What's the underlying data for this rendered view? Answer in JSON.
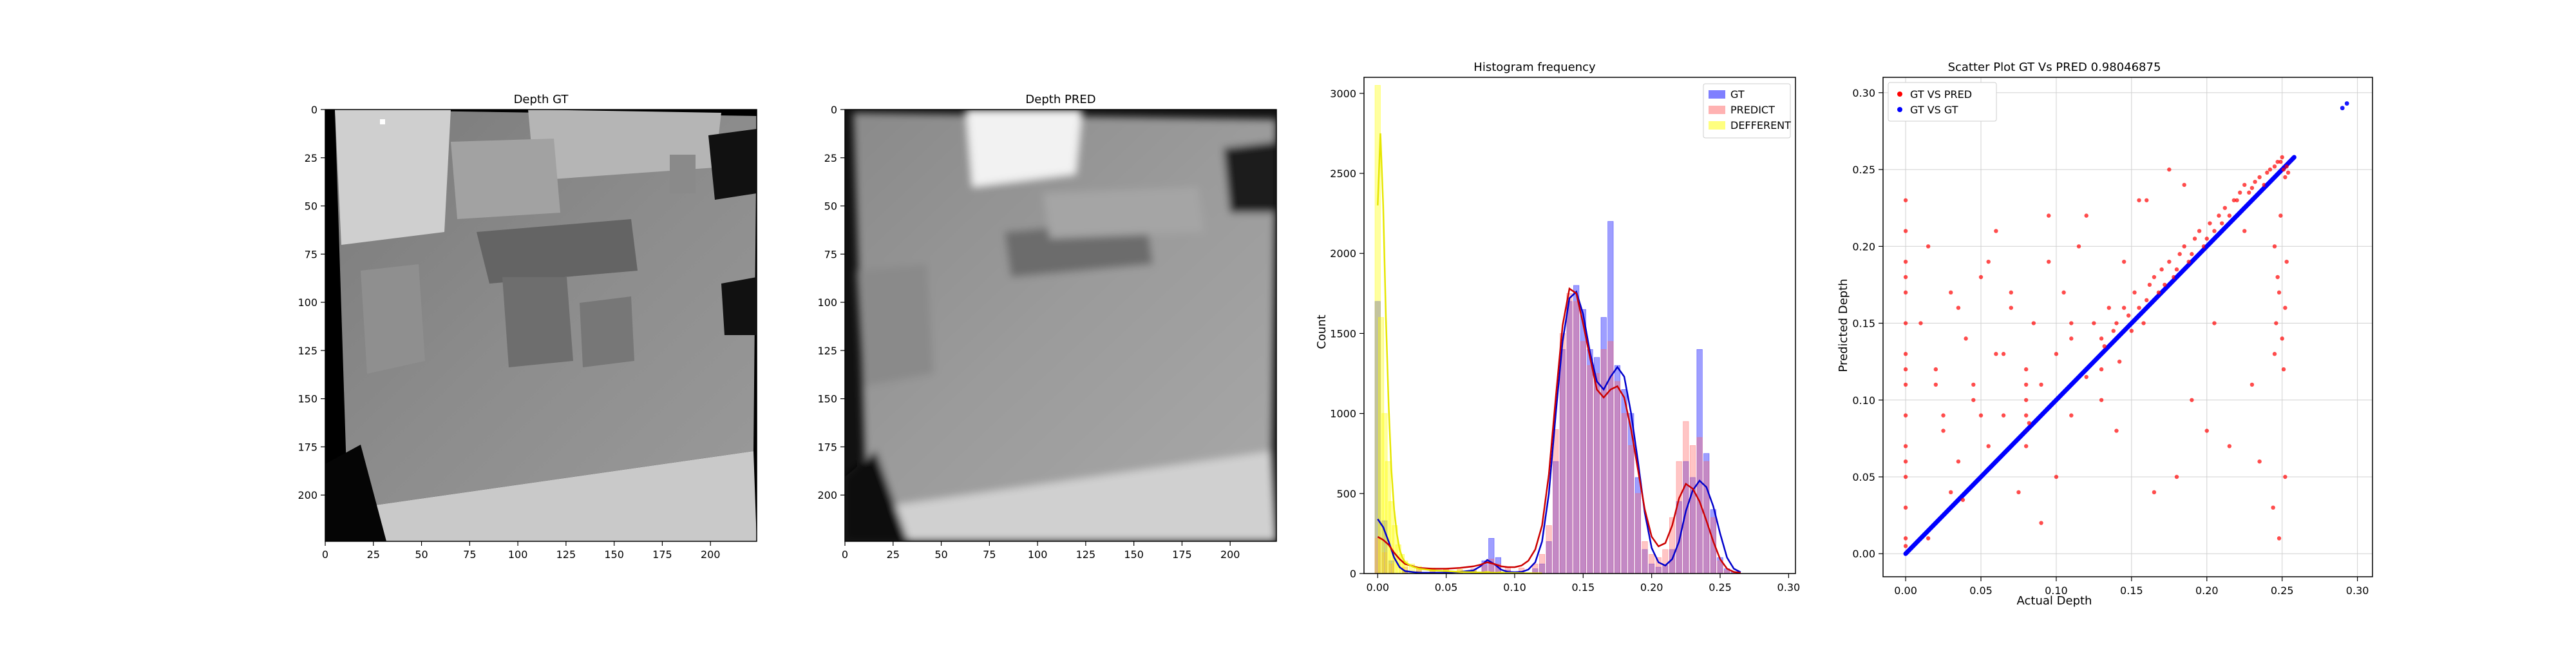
{
  "chart_data": [
    {
      "type": "heatmap",
      "title": "Depth GT",
      "xlim": [
        0,
        224
      ],
      "ylim": [
        224,
        0
      ],
      "x_ticks": [
        0,
        25,
        50,
        75,
        100,
        125,
        150,
        175,
        200
      ],
      "y_ticks": [
        0,
        25,
        50,
        75,
        100,
        125,
        150,
        175,
        200
      ],
      "colormap": "gray"
    },
    {
      "type": "heatmap",
      "title": "Depth PRED",
      "xlim": [
        0,
        224
      ],
      "ylim": [
        224,
        0
      ],
      "x_ticks": [
        0,
        25,
        50,
        75,
        100,
        125,
        150,
        175,
        200
      ],
      "y_ticks": [
        0,
        25,
        50,
        75,
        100,
        125,
        150,
        175,
        200
      ],
      "colormap": "gray"
    },
    {
      "type": "bar",
      "title": "Histogram frequency",
      "xlabel": "",
      "ylabel": "Count",
      "xlim": [
        -0.01,
        0.305
      ],
      "ylim": [
        0,
        3100
      ],
      "x_ticks": [
        0.0,
        0.05,
        0.1,
        0.15,
        0.2,
        0.25,
        0.3
      ],
      "y_ticks": [
        0,
        500,
        1000,
        1500,
        2000,
        2500,
        3000
      ],
      "legend_position": "top-right",
      "bin_width": 0.0025,
      "series": [
        {
          "name": "GT",
          "color": "#0000ff",
          "x": [
            0.0,
            0.005,
            0.01,
            0.02,
            0.03,
            0.04,
            0.05,
            0.06,
            0.07,
            0.078,
            0.083,
            0.088,
            0.095,
            0.105,
            0.115,
            0.12,
            0.125,
            0.13,
            0.135,
            0.14,
            0.145,
            0.15,
            0.155,
            0.16,
            0.165,
            0.17,
            0.175,
            0.18,
            0.185,
            0.19,
            0.195,
            0.2,
            0.205,
            0.21,
            0.215,
            0.22,
            0.225,
            0.23,
            0.235,
            0.24,
            0.245,
            0.25,
            0.255,
            0.26
          ],
          "values": [
            1700,
            330,
            80,
            20,
            15,
            10,
            10,
            10,
            15,
            80,
            220,
            100,
            20,
            15,
            30,
            60,
            200,
            700,
            1400,
            1700,
            1800,
            1650,
            1400,
            1350,
            1600,
            2200,
            1300,
            1150,
            1000,
            600,
            150,
            60,
            40,
            50,
            150,
            450,
            700,
            600,
            1400,
            750,
            400,
            100,
            30,
            10
          ]
        },
        {
          "name": "PREDICT",
          "color": "#ff6666",
          "x": [
            0.0,
            0.005,
            0.01,
            0.02,
            0.03,
            0.04,
            0.05,
            0.06,
            0.07,
            0.078,
            0.083,
            0.088,
            0.095,
            0.105,
            0.115,
            0.12,
            0.125,
            0.13,
            0.135,
            0.14,
            0.145,
            0.15,
            0.155,
            0.16,
            0.165,
            0.17,
            0.175,
            0.18,
            0.185,
            0.19,
            0.195,
            0.2,
            0.205,
            0.21,
            0.215,
            0.22,
            0.225,
            0.23,
            0.235,
            0.24,
            0.245,
            0.25,
            0.255,
            0.26
          ],
          "values": [
            220,
            130,
            60,
            40,
            30,
            30,
            25,
            25,
            30,
            50,
            90,
            60,
            40,
            35,
            60,
            120,
            300,
            900,
            1500,
            1750,
            1700,
            1450,
            1300,
            1250,
            1400,
            1450,
            1200,
            1000,
            800,
            500,
            200,
            120,
            100,
            150,
            350,
            700,
            950,
            800,
            850,
            700,
            350,
            80,
            20,
            5
          ]
        },
        {
          "name": "DEFFERENT",
          "color": "#ffff00",
          "x": [
            0.0,
            0.0025,
            0.005,
            0.0075,
            0.01,
            0.0125,
            0.015,
            0.0175,
            0.02,
            0.025,
            0.03,
            0.04,
            0.05,
            0.06,
            0.07,
            0.08,
            0.09,
            0.1,
            0.11
          ],
          "values": [
            3050,
            1600,
            1000,
            700,
            450,
            300,
            180,
            120,
            80,
            60,
            45,
            35,
            30,
            25,
            20,
            15,
            12,
            10,
            5
          ]
        }
      ],
      "kde": [
        {
          "series": "GT",
          "color": "#0000cc",
          "x": [
            0.0,
            0.004,
            0.008,
            0.012,
            0.016,
            0.02,
            0.03,
            0.04,
            0.05,
            0.06,
            0.07,
            0.075,
            0.08,
            0.085,
            0.09,
            0.095,
            0.1,
            0.105,
            0.11,
            0.115,
            0.12,
            0.125,
            0.13,
            0.135,
            0.14,
            0.145,
            0.15,
            0.155,
            0.16,
            0.165,
            0.17,
            0.175,
            0.18,
            0.185,
            0.19,
            0.195,
            0.2,
            0.205,
            0.21,
            0.215,
            0.22,
            0.225,
            0.23,
            0.235,
            0.24,
            0.245,
            0.25,
            0.255,
            0.26,
            0.265
          ],
          "values": [
            340,
            290,
            200,
            100,
            40,
            15,
            5,
            5,
            5,
            10,
            20,
            45,
            85,
            60,
            25,
            10,
            8,
            10,
            25,
            70,
            200,
            500,
            1000,
            1450,
            1720,
            1760,
            1620,
            1380,
            1200,
            1150,
            1230,
            1290,
            1230,
            1000,
            700,
            380,
            160,
            70,
            50,
            90,
            200,
            390,
            520,
            580,
            540,
            420,
            250,
            100,
            30,
            8
          ]
        },
        {
          "series": "PREDICT",
          "color": "#cc0000",
          "x": [
            0.0,
            0.004,
            0.008,
            0.012,
            0.016,
            0.02,
            0.03,
            0.04,
            0.05,
            0.06,
            0.07,
            0.075,
            0.08,
            0.085,
            0.09,
            0.095,
            0.1,
            0.105,
            0.11,
            0.115,
            0.12,
            0.125,
            0.13,
            0.135,
            0.14,
            0.145,
            0.15,
            0.155,
            0.16,
            0.165,
            0.17,
            0.175,
            0.18,
            0.185,
            0.19,
            0.195,
            0.2,
            0.205,
            0.21,
            0.215,
            0.22,
            0.225,
            0.23,
            0.235,
            0.24,
            0.245,
            0.25,
            0.255,
            0.26,
            0.265
          ],
          "values": [
            230,
            210,
            180,
            130,
            90,
            60,
            35,
            30,
            30,
            35,
            45,
            55,
            70,
            60,
            45,
            40,
            40,
            50,
            80,
            150,
            300,
            620,
            1100,
            1550,
            1780,
            1750,
            1560,
            1350,
            1150,
            1100,
            1150,
            1170,
            1100,
            900,
            650,
            400,
            230,
            170,
            190,
            300,
            470,
            560,
            530,
            450,
            330,
            200,
            90,
            30,
            10,
            4
          ]
        },
        {
          "series": "DEFFERENT",
          "color": "#e6e600",
          "x": [
            0.0,
            0.002,
            0.004,
            0.006,
            0.008,
            0.01,
            0.012,
            0.014,
            0.016,
            0.018,
            0.02,
            0.025,
            0.03,
            0.04,
            0.05,
            0.06,
            0.08,
            0.1,
            0.12
          ],
          "values": [
            2300,
            2750,
            2300,
            1600,
            1050,
            650,
            400,
            250,
            150,
            100,
            70,
            45,
            30,
            20,
            15,
            10,
            6,
            3,
            1
          ]
        }
      ]
    },
    {
      "type": "scatter",
      "title": "Scatter Plot GT Vs PRED 0.98046875",
      "xlabel": "Actual Depth",
      "ylabel": "Predicted Depth",
      "xlim": [
        -0.015,
        0.31
      ],
      "ylim": [
        -0.015,
        0.31
      ],
      "x_ticks": [
        0.0,
        0.05,
        0.1,
        0.15,
        0.2,
        0.25,
        0.3
      ],
      "y_ticks": [
        0.0,
        0.05,
        0.1,
        0.15,
        0.2,
        0.25,
        0.3
      ],
      "grid": true,
      "legend_position": "top-left",
      "series": [
        {
          "name": "GT VS PRED",
          "color": "#ff0000",
          "x": [
            0.0,
            0.0,
            0.0,
            0.0,
            0.0,
            0.0,
            0.0,
            0.0,
            0.0,
            0.0,
            0.0,
            0.0,
            0.0,
            0.0,
            0.0,
            0.0,
            0.01,
            0.015,
            0.02,
            0.025,
            0.03,
            0.035,
            0.038,
            0.04,
            0.045,
            0.05,
            0.055,
            0.06,
            0.065,
            0.07,
            0.075,
            0.08,
            0.08,
            0.08,
            0.08,
            0.08,
            0.08,
            0.082,
            0.085,
            0.09,
            0.095,
            0.1,
            0.105,
            0.11,
            0.115,
            0.12,
            0.125,
            0.13,
            0.13,
            0.132,
            0.135,
            0.138,
            0.14,
            0.142,
            0.145,
            0.148,
            0.15,
            0.152,
            0.155,
            0.158,
            0.16,
            0.162,
            0.165,
            0.168,
            0.17,
            0.172,
            0.175,
            0.178,
            0.18,
            0.182,
            0.185,
            0.188,
            0.19,
            0.192,
            0.195,
            0.198,
            0.2,
            0.202,
            0.205,
            0.208,
            0.21,
            0.212,
            0.215,
            0.218,
            0.22,
            0.222,
            0.225,
            0.228,
            0.23,
            0.232,
            0.235,
            0.238,
            0.24,
            0.242,
            0.245,
            0.247,
            0.249,
            0.25,
            0.251,
            0.252,
            0.253,
            0.254,
            0.255,
            0.245,
            0.246,
            0.248,
            0.25,
            0.252,
            0.245,
            0.247,
            0.249,
            0.251,
            0.253,
            0.244,
            0.248,
            0.252,
            0.12,
            0.14,
            0.16,
            0.18,
            0.2,
            0.215,
            0.23,
            0.06,
            0.045,
            0.035,
            0.1,
            0.11,
            0.09,
            0.07,
            0.02,
            0.03,
            0.05,
            0.155,
            0.175,
            0.165,
            0.19,
            0.205,
            0.185,
            0.225,
            0.235,
            0.11,
            0.095,
            0.13,
            0.145,
            0.025,
            0.015,
            0.055,
            0.065
          ],
          "y": [
            0.01,
            0.03,
            0.05,
            0.07,
            0.09,
            0.11,
            0.13,
            0.15,
            0.17,
            0.19,
            0.21,
            0.23,
            0.005,
            0.06,
            0.12,
            0.18,
            0.15,
            0.2,
            0.12,
            0.08,
            0.17,
            0.06,
            0.035,
            0.14,
            0.1,
            0.18,
            0.07,
            0.13,
            0.09,
            0.16,
            0.04,
            0.07,
            0.08,
            0.09,
            0.1,
            0.11,
            0.12,
            0.085,
            0.15,
            0.11,
            0.19,
            0.13,
            0.17,
            0.09,
            0.2,
            0.115,
            0.15,
            0.12,
            0.14,
            0.135,
            0.16,
            0.145,
            0.15,
            0.125,
            0.16,
            0.155,
            0.145,
            0.17,
            0.16,
            0.15,
            0.165,
            0.175,
            0.18,
            0.17,
            0.185,
            0.175,
            0.19,
            0.18,
            0.185,
            0.195,
            0.2,
            0.19,
            0.195,
            0.205,
            0.21,
            0.2,
            0.205,
            0.215,
            0.21,
            0.22,
            0.215,
            0.225,
            0.22,
            0.23,
            0.23,
            0.235,
            0.24,
            0.235,
            0.238,
            0.242,
            0.245,
            0.24,
            0.248,
            0.25,
            0.252,
            0.255,
            0.255,
            0.258,
            0.25,
            0.245,
            0.252,
            0.248,
            0.255,
            0.13,
            0.15,
            0.17,
            0.14,
            0.16,
            0.2,
            0.18,
            0.22,
            0.12,
            0.19,
            0.03,
            0.01,
            0.05,
            0.22,
            0.08,
            0.23,
            0.05,
            0.08,
            0.07,
            0.11,
            0.21,
            0.11,
            0.16,
            0.05,
            0.14,
            0.02,
            0.17,
            0.11,
            0.04,
            0.09,
            0.23,
            0.25,
            0.04,
            0.1,
            0.15,
            0.24,
            0.21,
            0.06,
            0.15,
            0.22,
            0.1,
            0.19,
            0.09,
            0.01,
            0.19,
            0.13
          ],
          "marker": "o"
        },
        {
          "name": "GT VS GT",
          "color": "#0000ff",
          "x": [
            0.0,
            0.02,
            0.04,
            0.06,
            0.08,
            0.1,
            0.12,
            0.14,
            0.16,
            0.18,
            0.2,
            0.22,
            0.24,
            0.255,
            0.29,
            0.293
          ],
          "y": [
            0.0,
            0.02,
            0.04,
            0.06,
            0.08,
            0.1,
            0.12,
            0.14,
            0.16,
            0.18,
            0.2,
            0.22,
            0.24,
            0.255,
            0.29,
            0.293
          ],
          "marker": "o"
        }
      ]
    }
  ]
}
